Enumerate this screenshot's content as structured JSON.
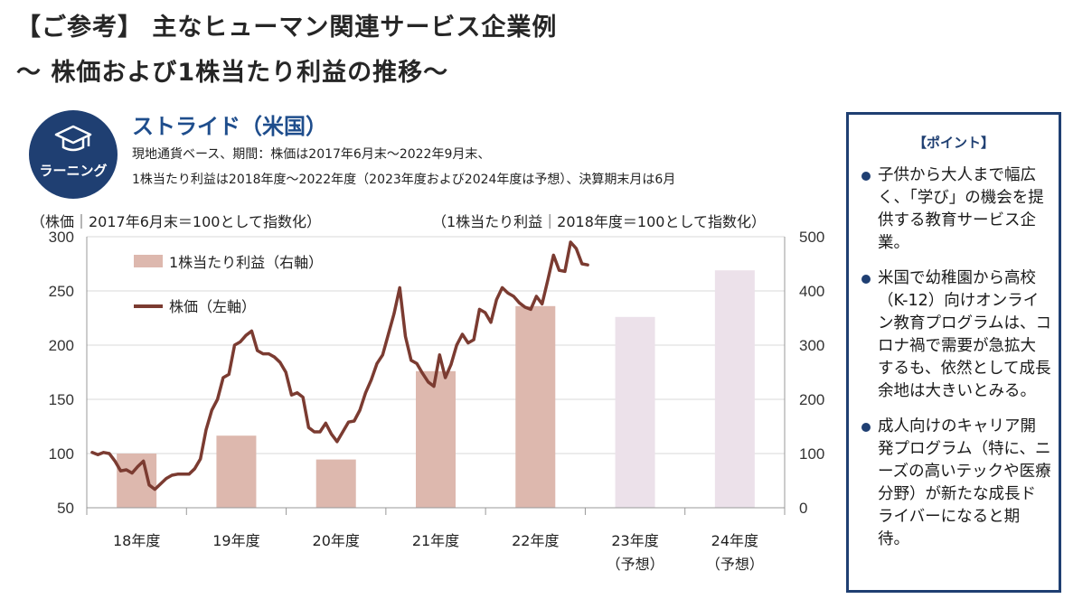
{
  "header": {
    "title_line1": "【ご参考】 主なヒューマン関連サービス企業例",
    "title_line2": "～  株価および1株当たり利益の推移～"
  },
  "badge": {
    "icon": "graduation-cap-icon",
    "label": "ラーニング",
    "color": "#1f3f72"
  },
  "company": {
    "name": "ストライド（米国）",
    "note_line1": "現地通貨ベース、期間：株価は2017年6月末～2022年9月末、",
    "note_line2": "1株当たり利益は2018年度～2022年度（2023年度および2024年度は予想）、決算期末月は6月"
  },
  "axis_notes": {
    "left": "（株価｜2017年6月末＝100として指数化）",
    "right": "（1株当たり利益｜2018年度＝100として指数化）"
  },
  "colors": {
    "eps_actual": "#ddb8ae",
    "eps_forecast": "#ece1ea",
    "price_line": "#7b3b31",
    "grid": "#d9d9d9"
  },
  "chart_data": {
    "type": "bar+line",
    "categories": [
      "18年度",
      "19年度",
      "20年度",
      "21年度",
      "22年度",
      "23年度",
      "24年度"
    ],
    "category_sub": [
      "",
      "",
      "",
      "",
      "",
      "（予想）",
      "（予想）"
    ],
    "legend": {
      "eps": "1株当たり利益（右軸）",
      "price": "株価（左軸）"
    },
    "left_axis": {
      "min": 50,
      "max": 300,
      "ticks": [
        50,
        100,
        150,
        200,
        250,
        300
      ]
    },
    "right_axis": {
      "min": 0,
      "max": 500,
      "ticks": [
        0,
        100,
        200,
        300,
        400,
        500
      ]
    },
    "grid": true,
    "eps_bars": {
      "values": [
        100,
        133,
        89,
        252,
        372,
        352,
        438
      ],
      "forecast": [
        false,
        false,
        false,
        false,
        false,
        true,
        true
      ]
    },
    "price_line": {
      "values": [
        101,
        99,
        101,
        100,
        93,
        84,
        85,
        82,
        88,
        93,
        71,
        67,
        72,
        77,
        80,
        81,
        81,
        81,
        86,
        95,
        122,
        140,
        150,
        170,
        173,
        200,
        203,
        209,
        213,
        195,
        192,
        192,
        189,
        184,
        175,
        154,
        156,
        152,
        124,
        120,
        120,
        128,
        118,
        111,
        120,
        129,
        130,
        140,
        156,
        168,
        183,
        191,
        210,
        229,
        253,
        208,
        186,
        183,
        174,
        166,
        162,
        191,
        170,
        182,
        200,
        210,
        202,
        205,
        233,
        230,
        221,
        242,
        253,
        248,
        245,
        239,
        235,
        233,
        245,
        238,
        260,
        283,
        269,
        268,
        295,
        289,
        275,
        274
      ]
    }
  },
  "point": {
    "title": "【ポイント】",
    "items": [
      "子供から大人まで幅広く、「学び」の機会を提供する教育サービス企業。",
      "米国で幼稚園から高校（K-12）向けオンライン教育プログラムは、コロナ禍で需要が急拡大するも、依然として成長余地は大きいとみる。",
      "成人向けのキャリア開発プログラム（特に、ニーズの高いテックや医療分野）が新たな成長ドライバーになると期待。"
    ]
  }
}
